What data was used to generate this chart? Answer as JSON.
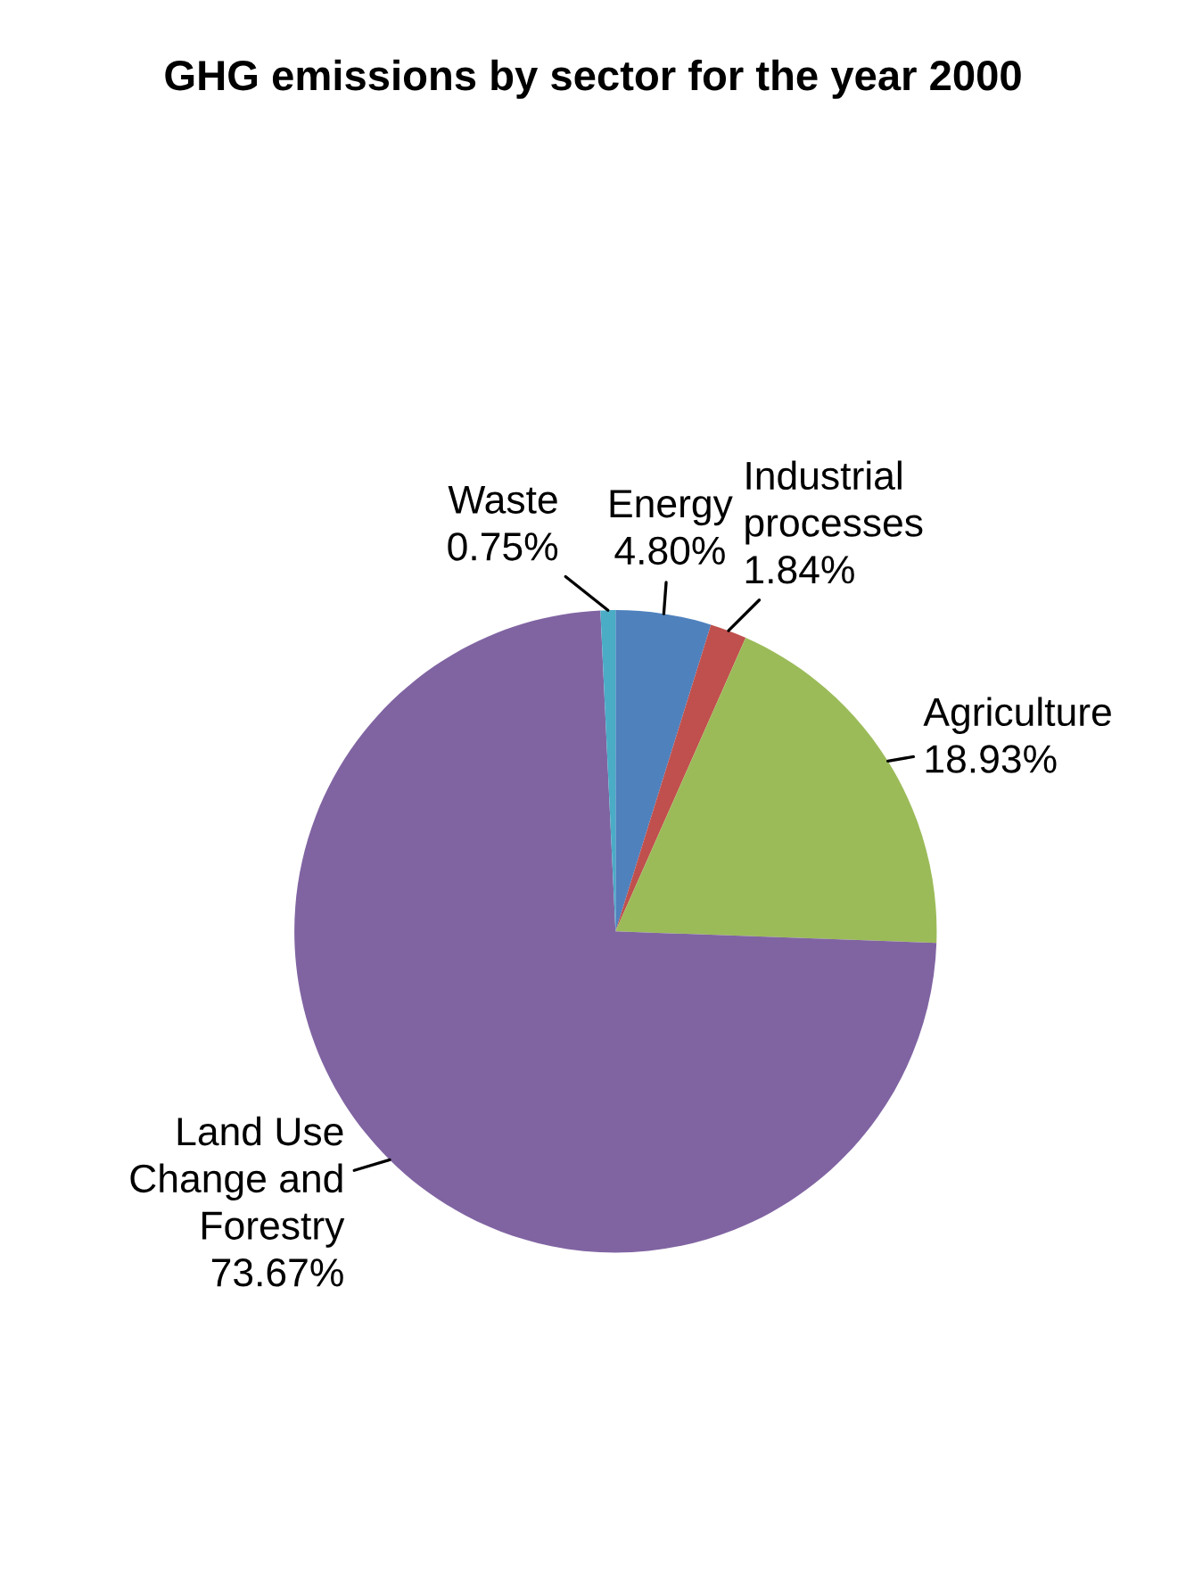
{
  "chart_data": {
    "type": "pie",
    "title": "GHG emissions by sector for the year 2000",
    "categories": [
      "Energy",
      "Industrial processes",
      "Agriculture",
      "Land Use Change and Forestry",
      "Waste"
    ],
    "values": [
      4.8,
      1.84,
      18.93,
      73.67,
      0.75
    ],
    "colors": [
      "#4f81bd",
      "#c0504d",
      "#9bbb59",
      "#8064a2",
      "#4bacc6"
    ],
    "value_labels": [
      "4.80%",
      "1.84%",
      "18.93%",
      "73.67%",
      "0.75%"
    ],
    "legend": false
  }
}
